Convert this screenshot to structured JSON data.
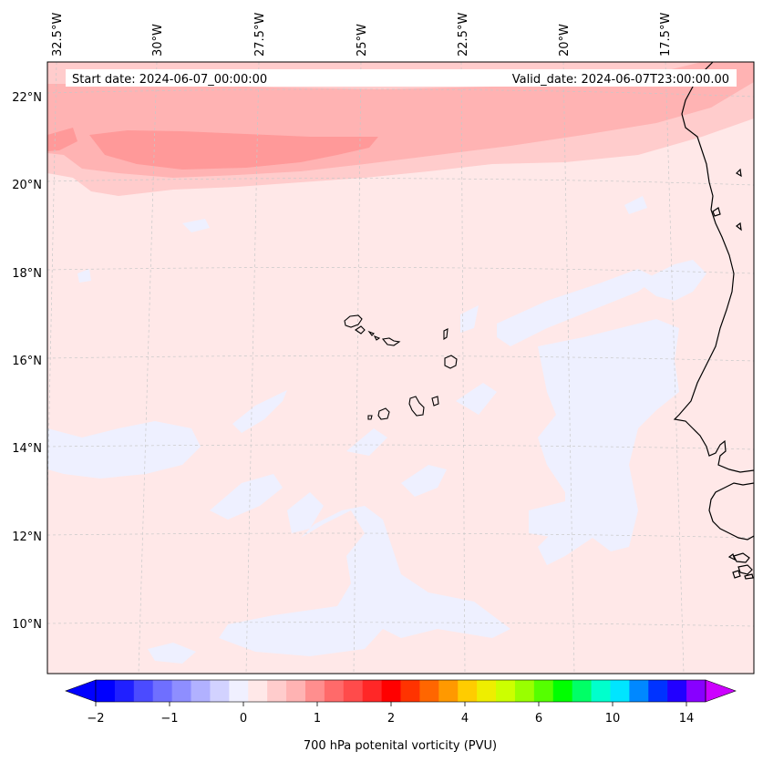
{
  "map": {
    "annotations": {
      "start_date": "Start date: 2024-06-07_00:00:00",
      "valid_date": "Valid_date: 2024-06-07T23:00:00.00"
    },
    "lon_labels": [
      "32.5°W",
      "30°W",
      "27.5°W",
      "25°W",
      "22.5°W",
      "20°W",
      "17.5°W"
    ],
    "lat_labels": [
      "22°N",
      "20°N",
      "18°N",
      "16°N",
      "14°N",
      "12°N",
      "10°N"
    ],
    "field_colors": {
      "background": "#ffe8e8",
      "light_blue": "#eef0ff",
      "band_1": "#ffcccc",
      "band_2": "#ffb3b3",
      "band_3": "#ff9999",
      "coast": "#000000"
    }
  },
  "colorbar": {
    "title": "700 hPa potenital vorticity (PVU)",
    "tick_labels": [
      "−2",
      "−1",
      "0",
      "1",
      "2",
      "4",
      "6",
      "10",
      "14"
    ],
    "colors": [
      "#0000ff",
      "#2020ff",
      "#4b4bff",
      "#6f6fff",
      "#8e8eff",
      "#b1b1ff",
      "#d2d2ff",
      "#f0f0ff",
      "#ffe8e8",
      "#ffcccc",
      "#ffb3b3",
      "#ff8e8e",
      "#ff6a6a",
      "#ff4b4b",
      "#ff2727",
      "#ff0000",
      "#ff3300",
      "#ff6600",
      "#ff9900",
      "#ffcc00",
      "#eeee00",
      "#ccff00",
      "#99ff00",
      "#55ff00",
      "#00ff00",
      "#00ff66",
      "#00ffcc",
      "#00e5ff",
      "#0088ff",
      "#0033ff",
      "#2200ff",
      "#8800ff"
    ],
    "extend_low_color": "#0000ff",
    "extend_high_color": "#cc00ff"
  }
}
